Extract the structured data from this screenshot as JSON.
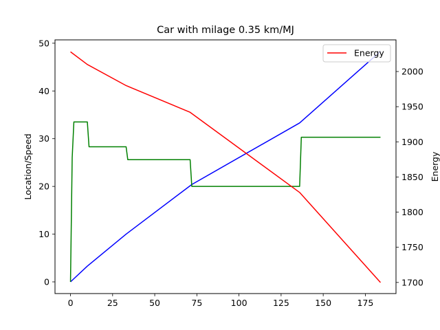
{
  "chart_data": {
    "type": "line",
    "title": "Car with milage 0.35 km/MJ",
    "xlabel": "",
    "ylabel": "Location/Speed",
    "y2label": "Energy",
    "xlim": [
      -9.2,
      193.2
    ],
    "ylim": [
      -2.45,
      50.7
    ],
    "y2lim": [
      1684.2,
      2045.0
    ],
    "xticks": [
      0,
      25,
      50,
      75,
      100,
      125,
      150,
      175
    ],
    "yticks": [
      0,
      10,
      20,
      30,
      40,
      50
    ],
    "y2ticks": [
      1700,
      1750,
      1800,
      1850,
      1900,
      1950,
      2000
    ],
    "grid": false,
    "legend": {
      "placement": "top-right",
      "entries": [
        "Energy"
      ]
    },
    "series": [
      {
        "key": "location",
        "axis": "left",
        "color": "#0000ff",
        "x": [
          0,
          10,
          33,
          72,
          136,
          184
        ],
        "y": [
          0,
          3.3,
          10,
          20.4,
          33.3,
          48.3
        ]
      },
      {
        "key": "speed",
        "axis": "left",
        "color": "#008000",
        "x": [
          0,
          1,
          2,
          10,
          11,
          33,
          34,
          71,
          72,
          136,
          137,
          184
        ],
        "y": [
          0,
          26,
          33.5,
          33.5,
          28.3,
          28.3,
          25.6,
          25.6,
          20,
          20,
          30.3,
          30.3
        ]
      },
      {
        "name": "Energy",
        "key": "energy",
        "axis": "right",
        "color": "#ff0000",
        "x": [
          0,
          10,
          33,
          71,
          136,
          184
        ],
        "y": [
          2028,
          2010,
          1980,
          1942,
          1828,
          1700
        ]
      }
    ]
  }
}
